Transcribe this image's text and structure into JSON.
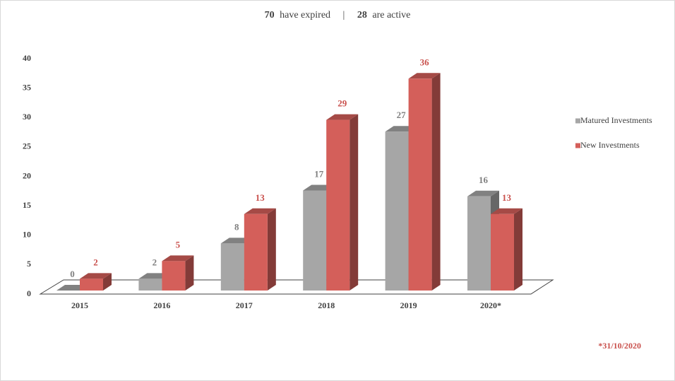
{
  "chart_data": {
    "type": "bar3d",
    "summary": [
      {
        "count": 70,
        "text": "have expired"
      },
      {
        "count": 28,
        "text": "are active"
      }
    ],
    "separator": "|",
    "categories": [
      "2015",
      "2016",
      "2017",
      "2018",
      "2019",
      "2020*"
    ],
    "series": [
      {
        "name": "Matured Investments",
        "color": "#a6a6a6",
        "label_color": "#7f7f7f",
        "values": [
          0,
          2,
          8,
          17,
          27,
          16
        ]
      },
      {
        "name": "New Investments",
        "color": "#d45f5a",
        "label_color": "#c9504c",
        "values": [
          2,
          5,
          13,
          29,
          36,
          13
        ]
      }
    ],
    "ylim": [
      0,
      40
    ],
    "yticks": [
      0,
      5,
      10,
      15,
      20,
      25,
      30,
      35,
      40
    ],
    "legend": "right",
    "footnote": "*31/10/2020"
  }
}
